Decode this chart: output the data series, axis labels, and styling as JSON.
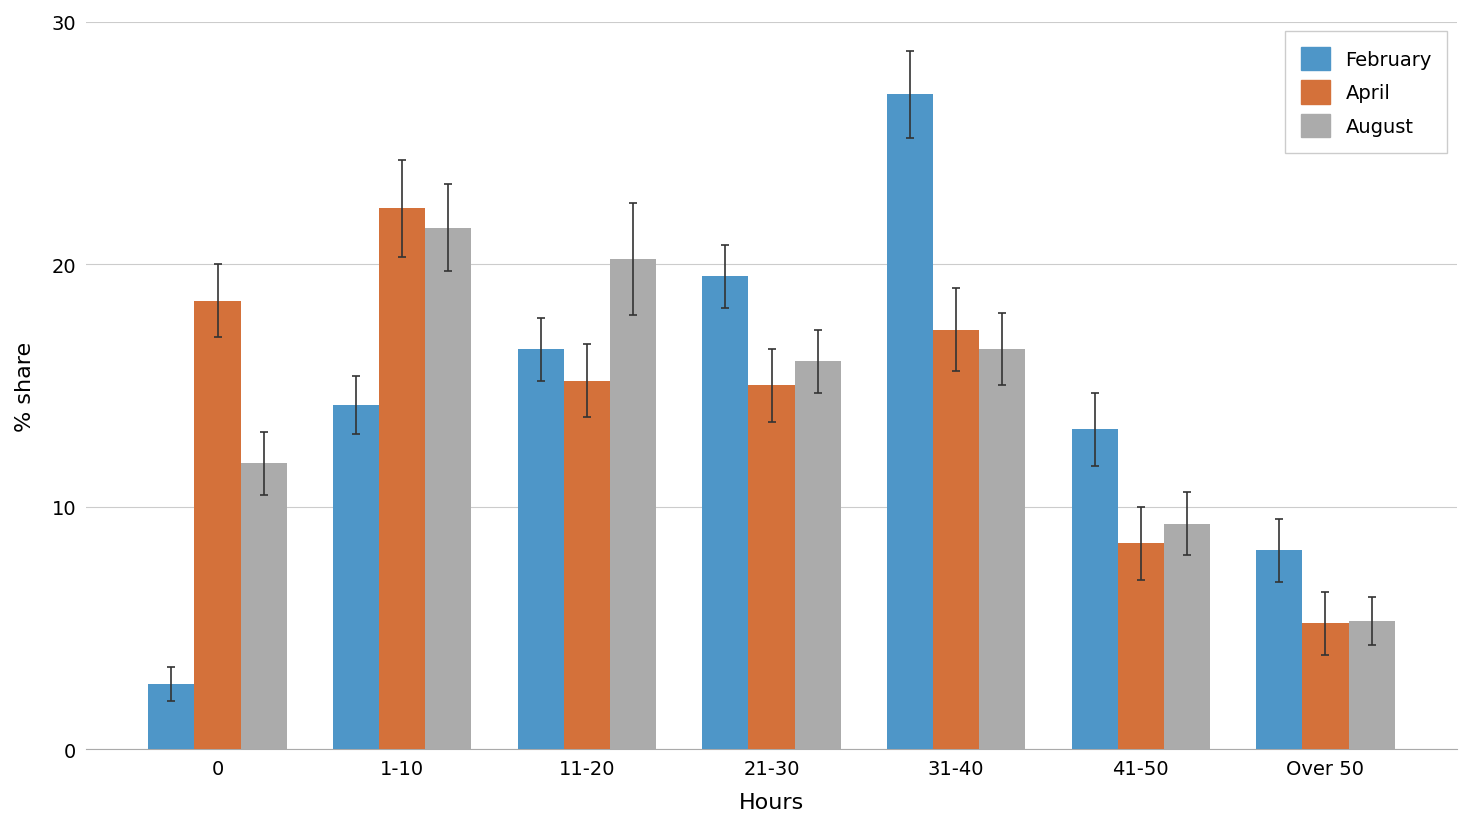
{
  "categories": [
    "0",
    "1-10",
    "11-20",
    "21-30",
    "31-40",
    "41-50",
    "Over 50"
  ],
  "series": [
    {
      "name": "February",
      "values": [
        2.7,
        14.2,
        16.5,
        19.5,
        27.0,
        13.2,
        8.2
      ],
      "errors": [
        0.7,
        1.2,
        1.3,
        1.3,
        1.8,
        1.5,
        1.3
      ],
      "color": "#4E96C8"
    },
    {
      "name": "April",
      "values": [
        18.5,
        22.3,
        15.2,
        15.0,
        17.3,
        8.5,
        5.2
      ],
      "errors": [
        1.5,
        2.0,
        1.5,
        1.5,
        1.7,
        1.5,
        1.3
      ],
      "color": "#D4713A"
    },
    {
      "name": "August",
      "values": [
        11.8,
        21.5,
        20.2,
        16.0,
        16.5,
        9.3,
        5.3
      ],
      "errors": [
        1.3,
        1.8,
        2.3,
        1.3,
        1.5,
        1.3,
        1.0
      ],
      "color": "#ABABAB"
    }
  ],
  "ylabel": "% share",
  "xlabel": "Hours",
  "ylim": [
    0,
    30
  ],
  "yticks": [
    0,
    10,
    20,
    30
  ],
  "bar_width": 0.25,
  "background_color": "#FFFFFF",
  "grid_color": "#CCCCCC",
  "grid_linewidth": 0.8,
  "axis_fontsize": 16,
  "tick_fontsize": 14,
  "legend_fontsize": 14,
  "errorbar_color": "#333333",
  "errorbar_linewidth": 1.2,
  "errorbar_capsize": 3,
  "errorbar_capthick": 1.2,
  "spine_color": "#AAAAAA"
}
